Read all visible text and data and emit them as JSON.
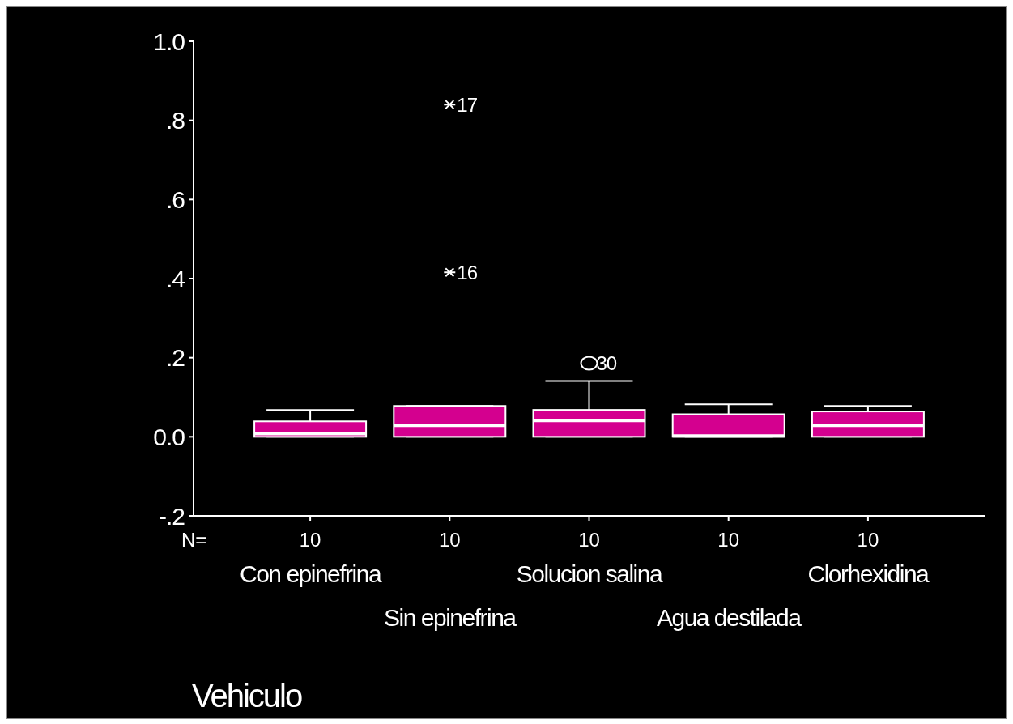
{
  "chart_data": {
    "type": "box",
    "xlabel": "Vehiculo",
    "categories": [
      "Con epinefrina",
      "Sin epinefrina",
      "Solucion salina",
      "Agua destilada",
      "Clorhexidina"
    ],
    "color": "#d4008f",
    "boxes": [
      {
        "low": 0,
        "q1": 0,
        "median": 0.008,
        "q3": 0.039,
        "high": 0.068
      },
      {
        "low": 0,
        "q1": 0,
        "median": 0.029,
        "q3": 0.078,
        "high": 0.078,
        "outliers": [
          0.84,
          0.416
        ]
      },
      {
        "low": 0,
        "q1": 0,
        "median": 0.041,
        "q3": 0.068,
        "high": 0.141,
        "outliers": [
          0.186
        ]
      },
      {
        "low": 0,
        "q1": 0,
        "median": 0.002,
        "q3": 0.057,
        "high": 0.082
      },
      {
        "low": 0,
        "q1": 0,
        "median": 0.029,
        "q3": 0.064,
        "high": 0.078
      }
    ],
    "ylim": [
      -0.2,
      1.0
    ],
    "yticks": [
      {
        "value": -0.2,
        "label": "-.2"
      },
      {
        "value": 0,
        "label": "0.0"
      },
      {
        "value": 0.2,
        "label": ".2"
      },
      {
        "value": 0.4,
        "label": ".4"
      },
      {
        "value": 0.6,
        "label": ".6"
      },
      {
        "value": 0.8,
        "label": ".8"
      },
      {
        "value": 1.0,
        "label": "1.0"
      }
    ],
    "annotations": [
      "N=",
      {
        "text": "10",
        "x": "Con epinefrina"
      },
      {
        "text": "10",
        "x": "Sin epinefrina"
      },
      {
        "text": "10",
        "x": "Solucion salina"
      },
      {
        "text": "10",
        "x": "Agua destilada"
      },
      {
        "text": "10",
        "x": "Clorhexidina"
      },
      "17",
      "16",
      "30"
    ]
  }
}
